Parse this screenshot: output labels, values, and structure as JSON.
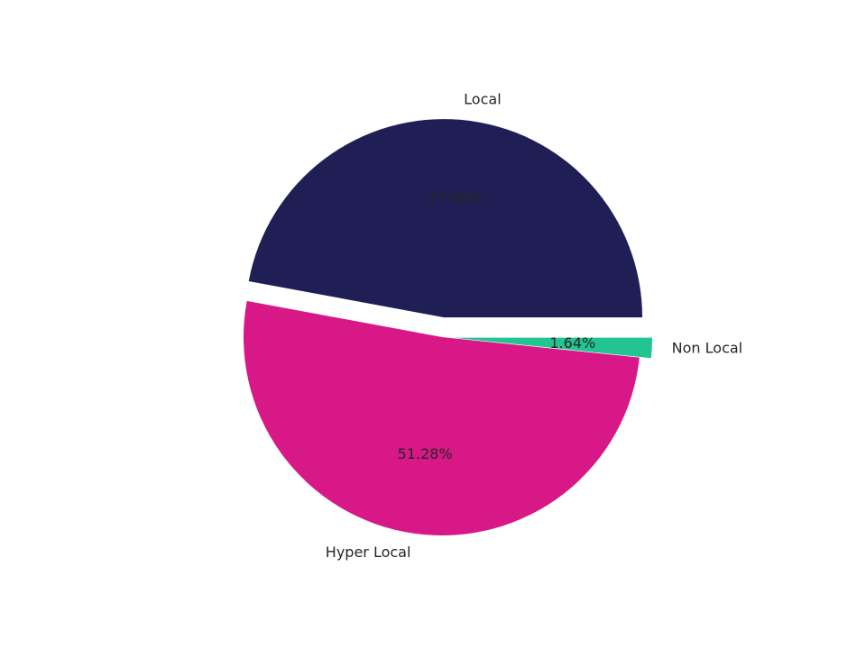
{
  "chart_data": {
    "type": "pie",
    "categories": [
      "Local",
      "Hyper Local",
      "Non Local"
    ],
    "values": [
      47.08,
      51.28,
      1.64
    ],
    "value_labels": [
      "47.08%",
      "51.28%",
      "1.64%"
    ],
    "colors": [
      "#1f1f55",
      "#d71886",
      "#22c491"
    ]
  }
}
